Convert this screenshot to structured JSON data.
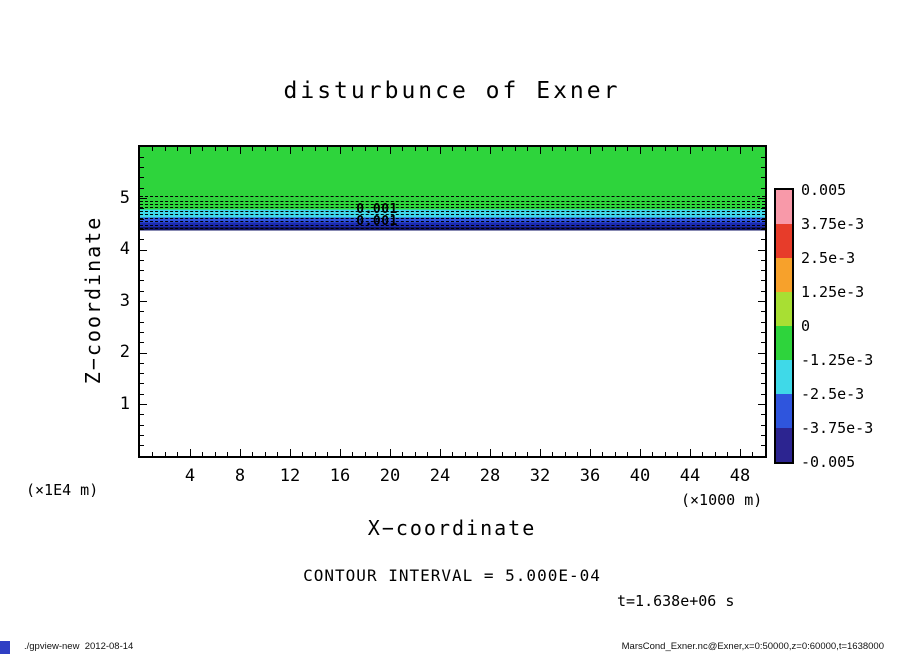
{
  "annotations": {
    "contour_interval_text": "CONTOUR INTERVAL = 5.000E-04",
    "time_text": "t=1.638e+06 s"
  },
  "footer": {
    "left": "./gpview-new  2012-08-14",
    "right": "MarsCond_Exner.nc@Exner,x=0:50000,z=0:60000,t=1638000"
  },
  "colorbar": {
    "labels": [
      "0.005",
      "3.75e-3",
      "2.5e-3",
      "1.25e-3",
      "0",
      "-1.25e-3",
      "-2.5e-3",
      "-3.75e-3",
      "-0.005"
    ],
    "colors": [
      "#f899a9",
      "#e73c2a",
      "#f7a12b",
      "#a8df33",
      "#2ed43c",
      "#3fd9e8",
      "#2f55dd",
      "#2c2490"
    ]
  },
  "chart_data": {
    "type": "heatmap",
    "style": "filled contour plot with dashed negative contour lines",
    "title": "disturbunce of Exner",
    "xlabel": "X−coordinate",
    "ylabel": "Z−coordinate",
    "x_unit": "(×1000 m)",
    "y_unit": "(×1E4 m)",
    "xlim": [
      0,
      50
    ],
    "ylim": [
      0,
      6
    ],
    "x_ticks_major": [
      4,
      8,
      12,
      16,
      20,
      24,
      28,
      32,
      36,
      40,
      44,
      48
    ],
    "x_minor_step": 1,
    "y_ticks_major": [
      1,
      2,
      3,
      4,
      5
    ],
    "y_minor_step": 0.2,
    "contour_interval": 0.0005,
    "bands": [
      {
        "z_top": 6.0,
        "z_bottom": 4.79,
        "color": "#2ed43c",
        "value": "near 0"
      },
      {
        "z_top": 4.79,
        "z_bottom": 4.63,
        "color": "#3fd9e8",
        "value": "-1.25e-3 bin"
      },
      {
        "z_top": 4.63,
        "z_bottom": 4.53,
        "color": "#2f55dd",
        "value": "-2.5e-3 bin"
      },
      {
        "z_top": 4.53,
        "z_bottom": 4.45,
        "color": "#1c2bb0",
        "value": "-3.75e-3 bin"
      },
      {
        "z_top": 4.45,
        "z_bottom": 4.38,
        "color": "#101566",
        "value": "<= -0.005"
      },
      {
        "z_top": 4.38,
        "z_bottom": 0.0,
        "color": "#ffffff",
        "value": "blank / zero region"
      }
    ],
    "contour_levels_z": [
      5.04,
      4.96,
      4.89,
      4.83,
      4.76,
      4.7,
      4.63,
      4.56,
      4.49,
      4.43
    ],
    "contour_labels": [
      {
        "text": "0.001",
        "x": 17.3,
        "z": 4.78
      },
      {
        "text": "0.001",
        "x": 17.3,
        "z": 4.55
      }
    ]
  }
}
